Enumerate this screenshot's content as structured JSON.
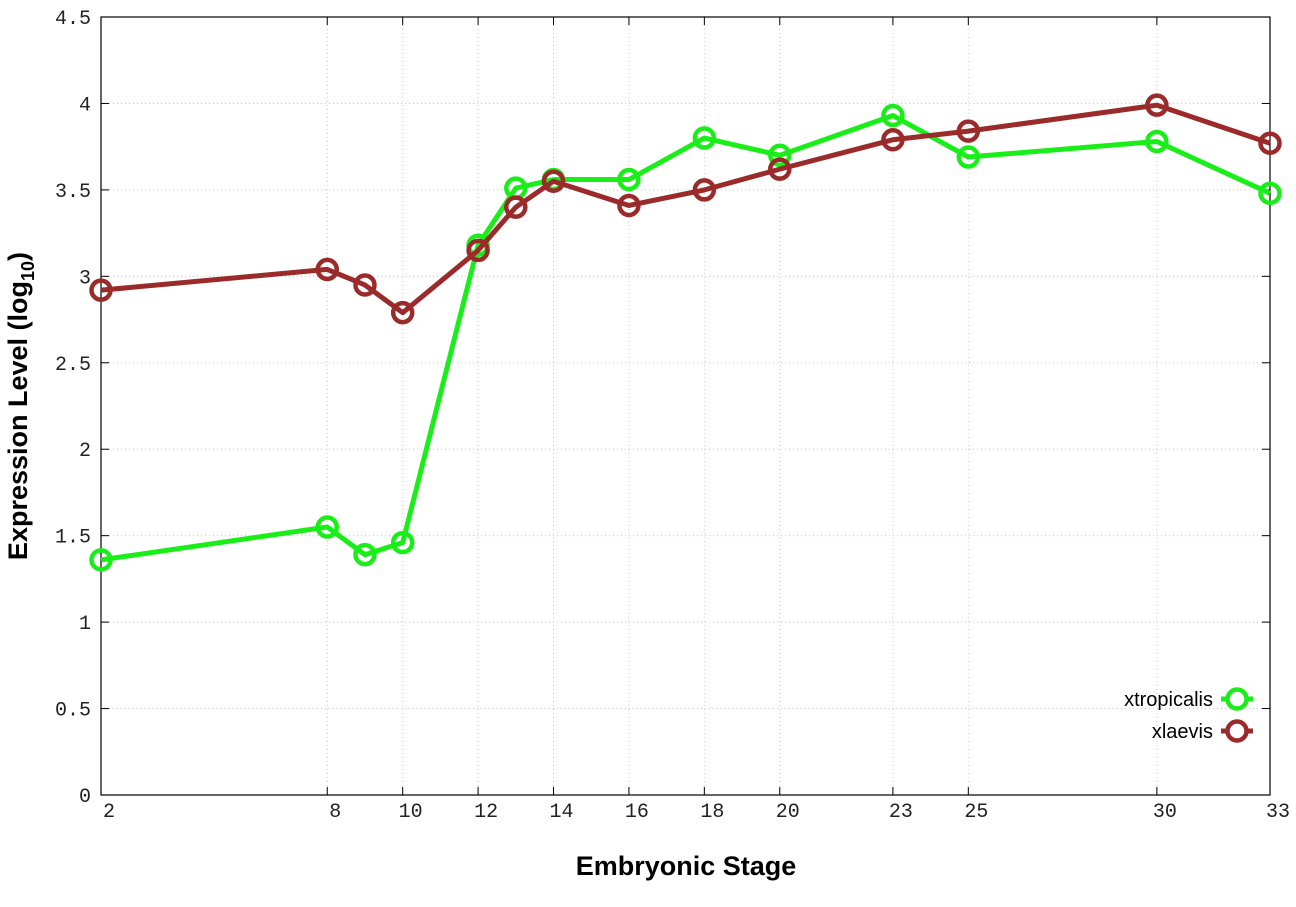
{
  "chart_data": {
    "type": "line",
    "title": "",
    "xlabel": "Embryonic Stage",
    "ylabel": "Expression Level (log",
    "ylabel_subscript": "10",
    "ylabel_close": ")",
    "x": [
      2,
      8,
      9,
      10,
      12,
      13,
      14,
      16,
      18,
      20,
      23,
      25,
      30,
      33
    ],
    "xticks": [
      2,
      8,
      10,
      12,
      14,
      16,
      18,
      20,
      23,
      25,
      30,
      33
    ],
    "xlim": [
      2,
      33
    ],
    "yticks": [
      "0",
      "0.5",
      "1",
      "1.5",
      "2",
      "2.5",
      "3",
      "3.5",
      "4",
      "4.5"
    ],
    "ylim": [
      0,
      4.5
    ],
    "grid": true,
    "legend_position": "bottom-right",
    "series": [
      {
        "name": "xtropicalis",
        "color": "#19ee19",
        "values": [
          1.36,
          1.55,
          1.39,
          1.46,
          3.18,
          3.51,
          3.56,
          3.56,
          3.8,
          3.7,
          3.93,
          3.69,
          3.78,
          3.48
        ]
      },
      {
        "name": "xlaevis",
        "color": "#9b2a2a",
        "values": [
          2.92,
          3.04,
          2.95,
          2.79,
          3.15,
          3.4,
          3.55,
          3.41,
          3.5,
          3.62,
          3.79,
          3.84,
          3.99,
          3.77
        ]
      }
    ]
  }
}
